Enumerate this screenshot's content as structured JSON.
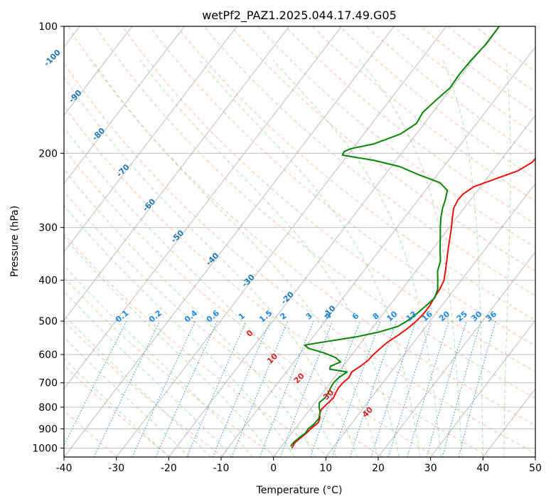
{
  "chart_data": {
    "type": "line",
    "subtype": "skew-T log-P diagram",
    "title": "wetPf2_PAZ1.2025.044.17.49.G05",
    "xlabel": "Temperature (°C)",
    "ylabel": "Pressure (hPa)",
    "xlim": [
      -40,
      50
    ],
    "ylim": [
      1050,
      100
    ],
    "y_scale": "log",
    "x_ticks": [
      "-40",
      "-30",
      "-20",
      "-10",
      "0",
      "10",
      "20",
      "30",
      "40",
      "50"
    ],
    "y_ticks": [
      "100",
      "200",
      "300",
      "400",
      "500",
      "600",
      "700",
      "800",
      "900",
      "1000"
    ],
    "grid": true,
    "series": [
      {
        "color": "#e8100f",
        "points": [
          [
            1000,
            2.2
          ],
          [
            970,
            2.0
          ],
          [
            950,
            2.3
          ],
          [
            920,
            2.8
          ],
          [
            900,
            3.0
          ],
          [
            870,
            3.5
          ],
          [
            850,
            3.2
          ],
          [
            830,
            2.5
          ],
          [
            810,
            2.2
          ],
          [
            790,
            2.4
          ],
          [
            760,
            2.8
          ],
          [
            740,
            2.5
          ],
          [
            720,
            2.3
          ],
          [
            700,
            2.4
          ],
          [
            680,
            2.8
          ],
          [
            660,
            2.5
          ],
          [
            640,
            3.3
          ],
          [
            620,
            3.9
          ],
          [
            600,
            4.1
          ],
          [
            580,
            4.5
          ],
          [
            560,
            5.0
          ],
          [
            540,
            6.0
          ],
          [
            520,
            6.8
          ],
          [
            500,
            7.4
          ],
          [
            480,
            7.7
          ],
          [
            460,
            7.7
          ],
          [
            440,
            7.4
          ],
          [
            420,
            7.2
          ],
          [
            400,
            6.7
          ],
          [
            380,
            5.6
          ],
          [
            360,
            4.4
          ],
          [
            340,
            3.1
          ],
          [
            320,
            1.8
          ],
          [
            300,
            0.4
          ],
          [
            285,
            -0.8
          ],
          [
            270,
            -2.0
          ],
          [
            258,
            -2.4
          ],
          [
            250,
            -2.3
          ],
          [
            240,
            -1.3
          ],
          [
            230,
            1.7
          ],
          [
            220,
            4.8
          ],
          [
            210,
            6.3
          ],
          [
            200,
            6.4
          ],
          [
            195,
            6.6
          ],
          [
            185,
            9.4
          ],
          [
            170,
            11.6
          ],
          [
            160,
            12.4
          ],
          [
            150,
            12.3
          ],
          [
            140,
            12.0
          ],
          [
            130,
            11.8
          ],
          [
            120,
            11.6
          ],
          [
            110,
            11.1
          ],
          [
            100,
            10.9
          ]
        ]
      },
      {
        "color": "#088408",
        "points": [
          [
            990,
            1.7
          ],
          [
            970,
            1.7
          ],
          [
            950,
            2.0
          ],
          [
            920,
            2.6
          ],
          [
            900,
            2.5
          ],
          [
            880,
            2.9
          ],
          [
            850,
            3.0
          ],
          [
            820,
            2.3
          ],
          [
            800,
            1.4
          ],
          [
            780,
            0.8
          ],
          [
            760,
            1.2
          ],
          [
            740,
            1.1
          ],
          [
            720,
            0.8
          ],
          [
            700,
            0.6
          ],
          [
            680,
            0.9
          ],
          [
            660,
            1.6
          ],
          [
            650,
            -2.1
          ],
          [
            640,
            -2.4
          ],
          [
            625,
            -1.1
          ],
          [
            610,
            -2.7
          ],
          [
            595,
            -5.5
          ],
          [
            580,
            -9.2
          ],
          [
            570,
            -10.4
          ],
          [
            560,
            -7.2
          ],
          [
            545,
            -1.8
          ],
          [
            530,
            2.0
          ],
          [
            515,
            4.6
          ],
          [
            500,
            5.6
          ],
          [
            480,
            6.4
          ],
          [
            460,
            7.0
          ],
          [
            440,
            7.5
          ],
          [
            420,
            6.8
          ],
          [
            400,
            5.5
          ],
          [
            380,
            4.1
          ],
          [
            360,
            3.2
          ],
          [
            340,
            1.6
          ],
          [
            320,
            0.0
          ],
          [
            300,
            -1.7
          ],
          [
            285,
            -3.0
          ],
          [
            270,
            -4.1
          ],
          [
            258,
            -4.8
          ],
          [
            245,
            -5.8
          ],
          [
            235,
            -8.3
          ],
          [
            225,
            -13.5
          ],
          [
            215,
            -18.4
          ],
          [
            208,
            -24.1
          ],
          [
            202,
            -31.0
          ],
          [
            198,
            -31.2
          ],
          [
            195,
            -30.3
          ],
          [
            190,
            -26.6
          ],
          [
            180,
            -23.0
          ],
          [
            170,
            -21.5
          ],
          [
            160,
            -21.9
          ],
          [
            150,
            -21.2
          ],
          [
            140,
            -20.3
          ],
          [
            130,
            -20.5
          ],
          [
            120,
            -20.3
          ],
          [
            110,
            -19.8
          ],
          [
            100,
            -19.9
          ]
        ]
      }
    ],
    "mixing_ratio_labels": [
      "0.1",
      "0.2",
      "0.4",
      "0.6",
      "1",
      "1.5",
      "2",
      "3",
      "4",
      "6",
      "8",
      "10",
      "13",
      "16",
      "20",
      "25",
      "30",
      "36"
    ],
    "dry_adiabat_labels": [
      "-100",
      "-90",
      "-80",
      "-70",
      "-60",
      "-50",
      "-40",
      "-30",
      "-20",
      "-10"
    ],
    "moist_adiabat_labels": [
      "0",
      "10",
      "20",
      "30",
      "40"
    ]
  }
}
